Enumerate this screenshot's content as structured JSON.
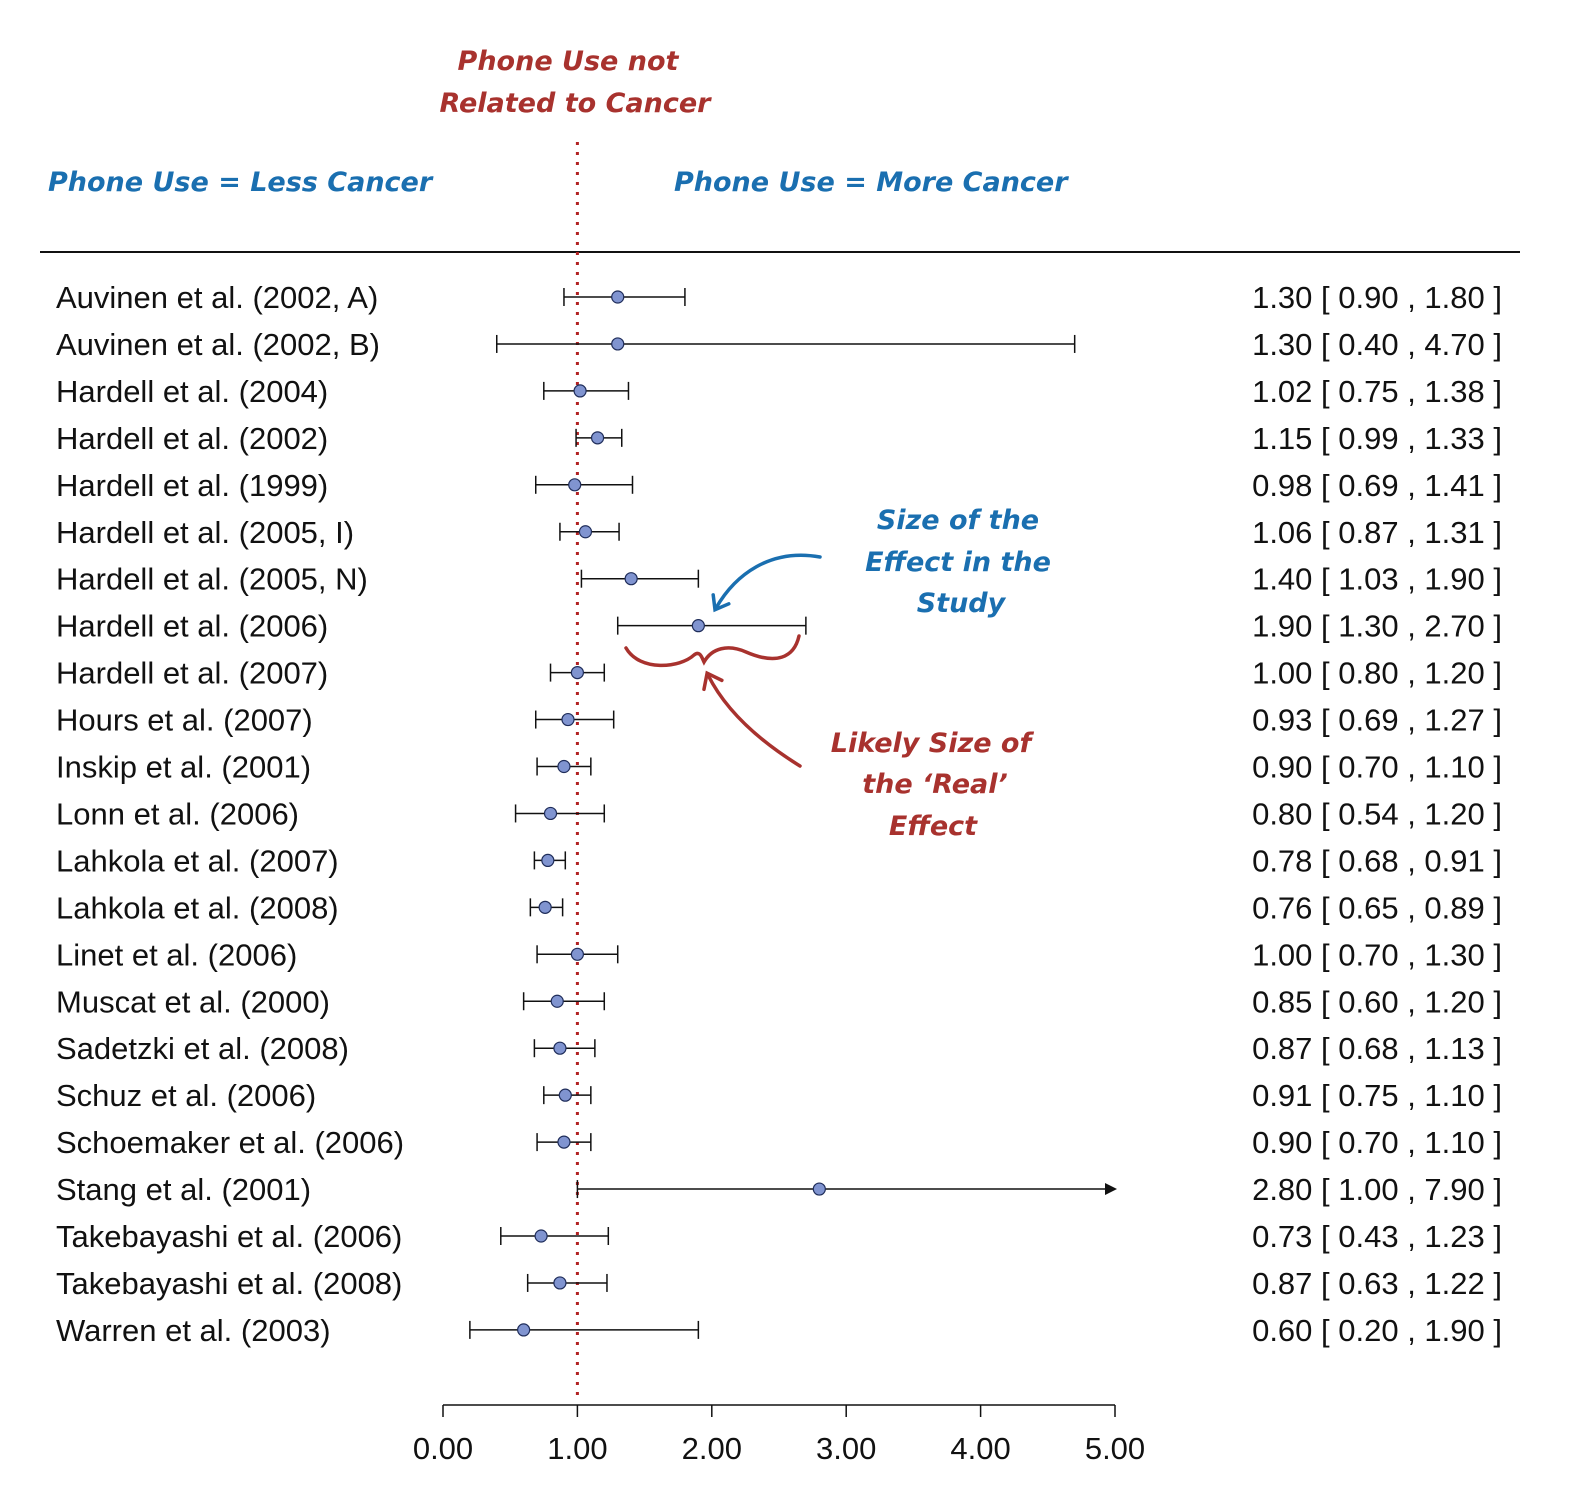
{
  "chart_data": {
    "type": "forest",
    "xlim": [
      0,
      5
    ],
    "x_ticks": [
      "0.00",
      "1.00",
      "2.00",
      "3.00",
      "4.00",
      "5.00"
    ],
    "reference_line": 1.0,
    "colors": {
      "point": "#8094d0",
      "line": "#111111",
      "reference": "#b22222",
      "red_annotation": "#a8322e",
      "blue_annotation": "#1a6fb0"
    },
    "studies": [
      {
        "name": "Auvinen et al. (2002, A)",
        "est": 1.3,
        "lo": 0.9,
        "hi": 1.8,
        "ci_text": "1.30 [ 0.90 , 1.80 ]"
      },
      {
        "name": "Auvinen et al. (2002, B)",
        "est": 1.3,
        "lo": 0.4,
        "hi": 4.7,
        "ci_text": "1.30 [ 0.40 , 4.70 ]"
      },
      {
        "name": "Hardell et al. (2004)",
        "est": 1.02,
        "lo": 0.75,
        "hi": 1.38,
        "ci_text": "1.02 [ 0.75 , 1.38 ]"
      },
      {
        "name": "Hardell et al. (2002)",
        "est": 1.15,
        "lo": 0.99,
        "hi": 1.33,
        "ci_text": "1.15 [ 0.99 , 1.33 ]"
      },
      {
        "name": "Hardell et al. (1999)",
        "est": 0.98,
        "lo": 0.69,
        "hi": 1.41,
        "ci_text": "0.98 [ 0.69 , 1.41 ]"
      },
      {
        "name": "Hardell et al. (2005, I)",
        "est": 1.06,
        "lo": 0.87,
        "hi": 1.31,
        "ci_text": "1.06 [ 0.87 , 1.31 ]"
      },
      {
        "name": "Hardell et al. (2005, N)",
        "est": 1.4,
        "lo": 1.03,
        "hi": 1.9,
        "ci_text": "1.40 [ 1.03 , 1.90 ]"
      },
      {
        "name": "Hardell et al. (2006)",
        "est": 1.9,
        "lo": 1.3,
        "hi": 2.7,
        "ci_text": "1.90 [ 1.30 , 2.70 ]"
      },
      {
        "name": "Hardell et al. (2007)",
        "est": 1.0,
        "lo": 0.8,
        "hi": 1.2,
        "ci_text": "1.00 [ 0.80 , 1.20 ]"
      },
      {
        "name": "Hours et al. (2007)",
        "est": 0.93,
        "lo": 0.69,
        "hi": 1.27,
        "ci_text": "0.93 [ 0.69 , 1.27 ]"
      },
      {
        "name": "Inskip et al. (2001)",
        "est": 0.9,
        "lo": 0.7,
        "hi": 1.1,
        "ci_text": "0.90 [ 0.70 , 1.10 ]"
      },
      {
        "name": "Lonn et al. (2006)",
        "est": 0.8,
        "lo": 0.54,
        "hi": 1.2,
        "ci_text": "0.80 [ 0.54 , 1.20 ]"
      },
      {
        "name": "Lahkola et al. (2007)",
        "est": 0.78,
        "lo": 0.68,
        "hi": 0.91,
        "ci_text": "0.78 [ 0.68 , 0.91 ]"
      },
      {
        "name": "Lahkola et al. (2008)",
        "est": 0.76,
        "lo": 0.65,
        "hi": 0.89,
        "ci_text": "0.76 [ 0.65 , 0.89 ]"
      },
      {
        "name": "Linet et al. (2006)",
        "est": 1.0,
        "lo": 0.7,
        "hi": 1.3,
        "ci_text": "1.00 [ 0.70 , 1.30 ]"
      },
      {
        "name": "Muscat et al. (2000)",
        "est": 0.85,
        "lo": 0.6,
        "hi": 1.2,
        "ci_text": "0.85 [ 0.60 , 1.20 ]"
      },
      {
        "name": "Sadetzki et al. (2008)",
        "est": 0.87,
        "lo": 0.68,
        "hi": 1.13,
        "ci_text": "0.87 [ 0.68 , 1.13 ]"
      },
      {
        "name": "Schuz et al. (2006)",
        "est": 0.91,
        "lo": 0.75,
        "hi": 1.1,
        "ci_text": "0.91 [ 0.75 , 1.10 ]"
      },
      {
        "name": "Schoemaker et al. (2006)",
        "est": 0.9,
        "lo": 0.7,
        "hi": 1.1,
        "ci_text": "0.90 [ 0.70 , 1.10 ]"
      },
      {
        "name": "Stang et al. (2001)",
        "est": 2.8,
        "lo": 1.0,
        "hi": 7.9,
        "ci_text": "2.80 [ 1.00 , 7.90 ]"
      },
      {
        "name": "Takebayashi et al. (2006)",
        "est": 0.73,
        "lo": 0.43,
        "hi": 1.23,
        "ci_text": "0.73 [ 0.43 , 1.23 ]"
      },
      {
        "name": "Takebayashi et al. (2008)",
        "est": 0.87,
        "lo": 0.63,
        "hi": 1.22,
        "ci_text": "0.87 [ 0.63 , 1.22 ]"
      },
      {
        "name": "Warren et al. (2003)",
        "est": 0.6,
        "lo": 0.2,
        "hi": 1.9,
        "ci_text": "0.60 [ 0.20 , 1.90 ]"
      }
    ],
    "annotations": {
      "reference_line_label": [
        "Phone Use not",
        "Related to Cancer"
      ],
      "left_label": "Phone Use = Less Cancer",
      "right_label": "Phone Use = More Cancer",
      "study_effect_label": [
        "Size of the",
        "Effect in the",
        "Study"
      ],
      "real_effect_label": [
        "Likely Size of",
        "the ‘Real’",
        "Effect"
      ]
    }
  }
}
